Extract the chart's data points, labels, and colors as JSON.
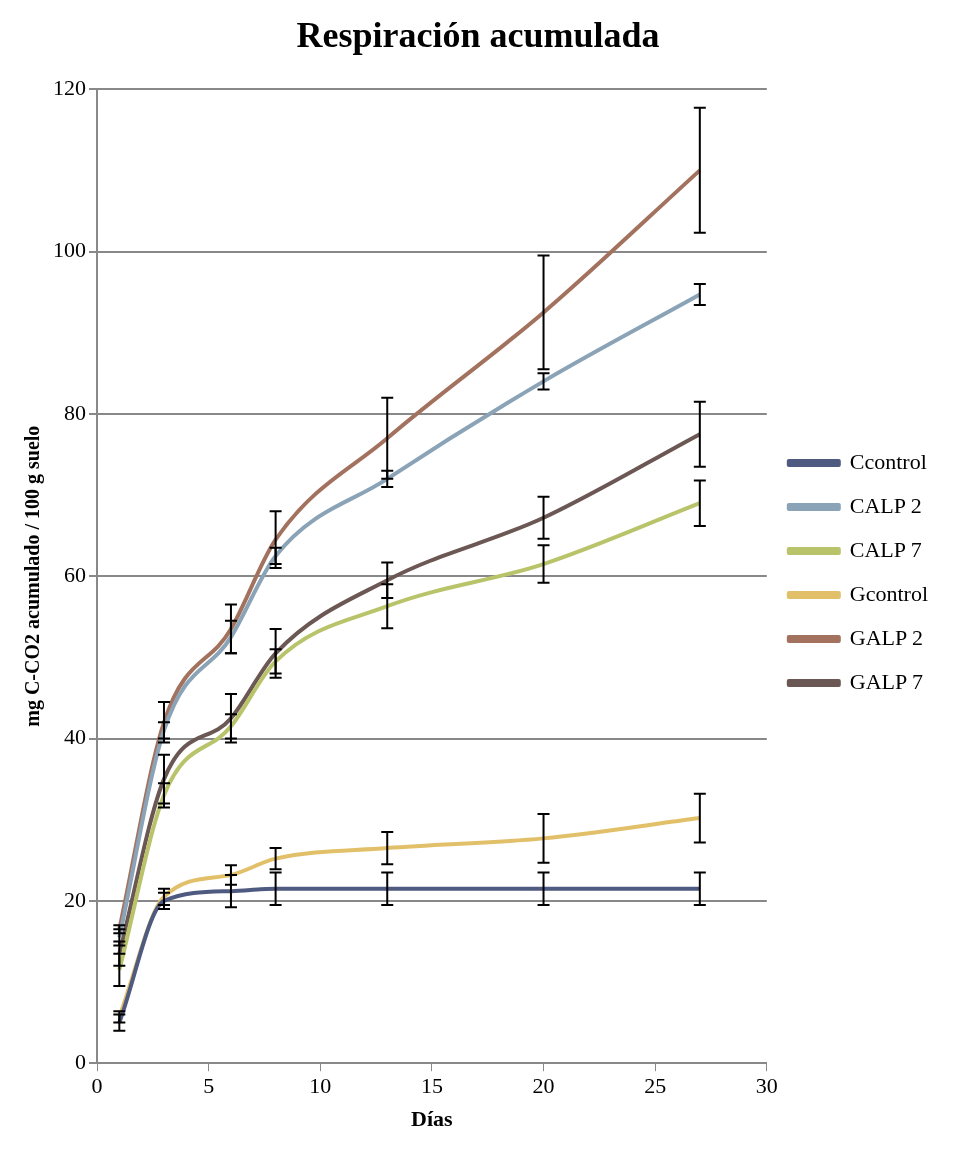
{
  "chart_data": {
    "type": "line",
    "title": "Respiración acumulada",
    "xlabel": "Días",
    "ylabel": "mg C-CO2 acumulado / 100 g suelo",
    "x": [
      1,
      3,
      6,
      8,
      13,
      20,
      27
    ],
    "xlim": [
      0,
      30
    ],
    "xticks": [
      0,
      5,
      10,
      15,
      20,
      25,
      30
    ],
    "ylim": [
      0,
      120
    ],
    "yticks": [
      0,
      20,
      40,
      60,
      80,
      100,
      120
    ],
    "grid": "y",
    "legend": "right",
    "line_style": "solid",
    "series": [
      {
        "name": "Ccontrol",
        "color": "#4f5a80",
        "values": [
          5,
          20,
          21.2,
          21.5,
          21.5,
          21.5,
          21.5
        ],
        "errors": [
          1,
          1,
          2,
          2,
          2,
          2,
          2
        ]
      },
      {
        "name": "CALP 2",
        "color": "#8aa3b7",
        "values": [
          15.5,
          41,
          52.5,
          62.5,
          72,
          84,
          94.7
        ],
        "errors": [
          1,
          1,
          2,
          1,
          1,
          1,
          1.3
        ]
      },
      {
        "name": "CALP 7",
        "color": "#b9c46a",
        "values": [
          11.5,
          33,
          41.5,
          49.5,
          56.3,
          61.5,
          69
        ],
        "errors": [
          2,
          1.5,
          1.5,
          1.5,
          2.7,
          2.3,
          2.8
        ]
      },
      {
        "name": "Gcontrol",
        "color": "#e2c06a",
        "values": [
          5.7,
          20.5,
          23.2,
          25.2,
          26.5,
          27.7,
          30.2
        ],
        "errors": [
          0.7,
          1,
          1.2,
          1.3,
          2,
          3,
          3
        ]
      },
      {
        "name": "GALP 2",
        "color": "#a3725f",
        "values": [
          16.5,
          42,
          53.5,
          64.5,
          77,
          92.5,
          110
        ],
        "errors": [
          0.5,
          2.5,
          3,
          3.5,
          5,
          7,
          7.7
        ]
      },
      {
        "name": "GALP 7",
        "color": "#6b5753",
        "values": [
          13.5,
          35,
          42.5,
          50.5,
          59.5,
          67.2,
          77.5
        ],
        "errors": [
          1.5,
          3,
          3,
          3,
          2.2,
          2.6,
          4
        ]
      }
    ]
  }
}
